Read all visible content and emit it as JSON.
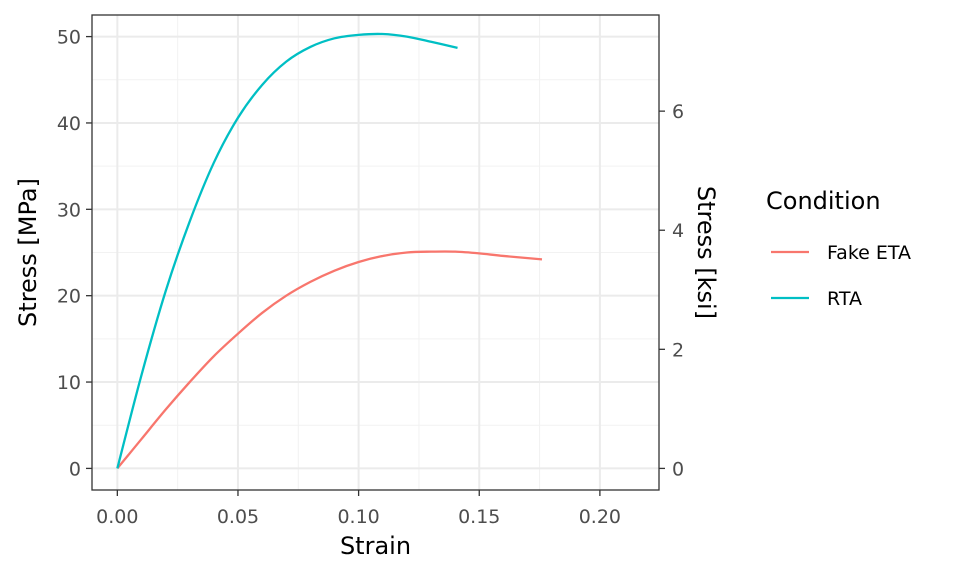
{
  "chart_data": {
    "type": "line",
    "xlabel": "Strain",
    "ylabel": "Stress [MPa]",
    "y2label": "Stress [ksi]",
    "xlim": [
      -0.0105,
      0.2245
    ],
    "ylim": [
      -2.5,
      52.5
    ],
    "y2lim": [
      -0.3626,
      7.6145
    ],
    "x_ticks": [
      0.0,
      0.05,
      0.1,
      0.15,
      0.2
    ],
    "x_tick_labels": [
      "0.00",
      "0.05",
      "0.10",
      "0.15",
      "0.20"
    ],
    "y_ticks": [
      0,
      10,
      20,
      30,
      40,
      50
    ],
    "y_tick_labels": [
      "0",
      "10",
      "20",
      "30",
      "40",
      "50"
    ],
    "y2_ticks": [
      0,
      2,
      4,
      6
    ],
    "y2_tick_labels": [
      "0",
      "2",
      "4",
      "6"
    ],
    "grid": true,
    "legend": {
      "title": "Condition",
      "placement": "right"
    },
    "series": [
      {
        "name": "Fake ETA",
        "color": "#F8766D",
        "x": [
          0.0,
          0.01,
          0.02,
          0.03,
          0.04,
          0.05,
          0.06,
          0.07,
          0.08,
          0.09,
          0.1,
          0.11,
          0.12,
          0.13,
          0.14,
          0.15,
          0.16,
          0.176
        ],
        "y": [
          0.0,
          3.4,
          6.8,
          10.0,
          13.0,
          15.6,
          18.0,
          20.0,
          21.6,
          22.9,
          23.9,
          24.6,
          25.0,
          25.1,
          25.1,
          24.9,
          24.6,
          24.2
        ]
      },
      {
        "name": "RTA",
        "color": "#00BFC4",
        "x": [
          0.0,
          0.01,
          0.02,
          0.03,
          0.04,
          0.05,
          0.06,
          0.07,
          0.08,
          0.09,
          0.1,
          0.11,
          0.12,
          0.13,
          0.141
        ],
        "y": [
          0.0,
          10.8,
          20.5,
          28.6,
          35.4,
          40.6,
          44.4,
          47.1,
          48.8,
          49.8,
          50.2,
          50.3,
          50.0,
          49.4,
          48.7
        ]
      }
    ]
  }
}
